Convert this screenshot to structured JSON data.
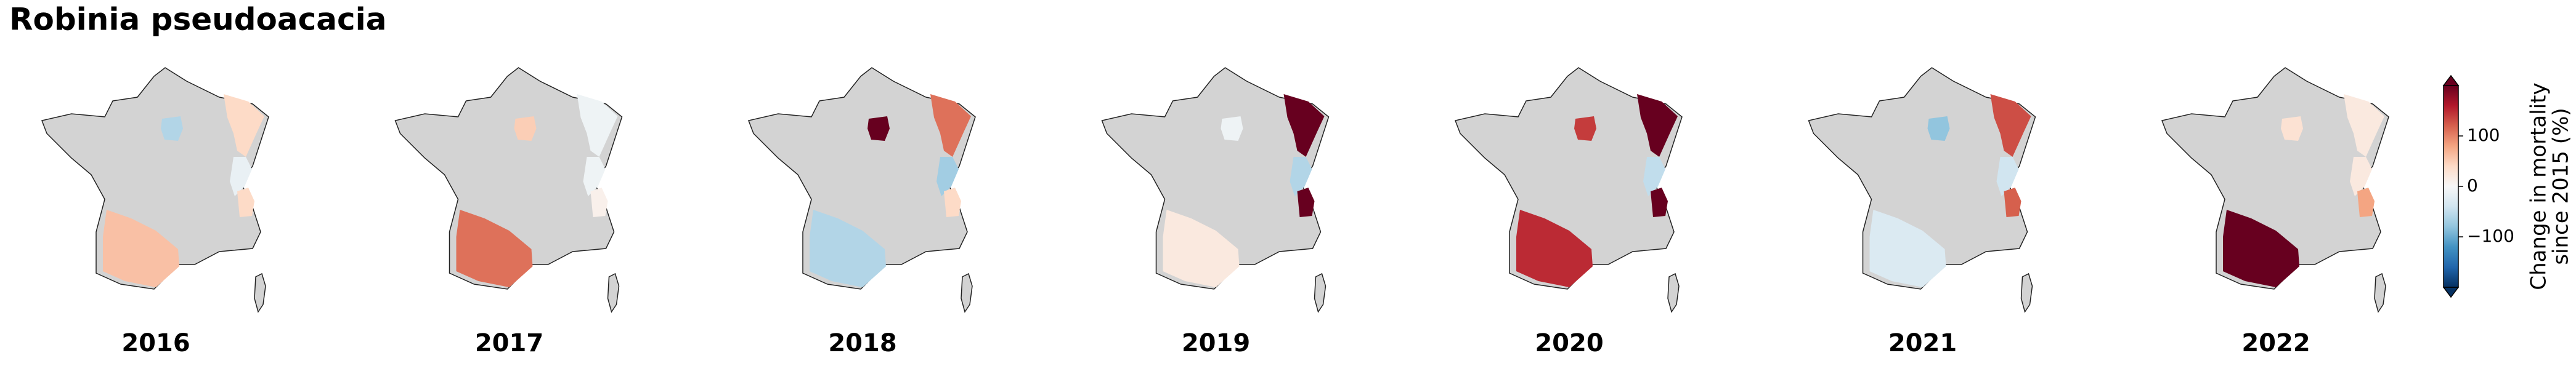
{
  "title": "Robinia pseudoacacia",
  "panels": [
    {
      "label": "2016",
      "values": [
        -60,
        40,
        -15,
        40,
        60
      ]
    },
    {
      "label": "2017",
      "values": [
        50,
        -10,
        -10,
        10,
        110
      ]
    },
    {
      "label": "2018",
      "values": [
        200,
        110,
        -70,
        40,
        -60
      ]
    },
    {
      "label": "2019",
      "values": [
        -10,
        200,
        -60,
        200,
        20
      ]
    },
    {
      "label": "2020",
      "values": [
        140,
        200,
        -50,
        200,
        150
      ]
    },
    {
      "label": "2021",
      "values": [
        -80,
        130,
        -40,
        120,
        -30
      ]
    },
    {
      "label": "2022",
      "values": [
        30,
        20,
        20,
        80,
        200
      ]
    }
  ],
  "colorbar": {
    "label": [
      "Change in mortality",
      "since 2015 (%)"
    ],
    "lim": [
      -200,
      200
    ],
    "ticks": [
      {
        "value": -100,
        "label": "−100"
      },
      0,
      100
    ],
    "colors": [
      "#053061",
      "#2166ac",
      "#4393c3",
      "#92c5de",
      "#d1e5f0",
      "#f7f7f7",
      "#fddbc7",
      "#f4a582",
      "#d6604d",
      "#b2182b",
      "#67001f"
    ]
  }
}
